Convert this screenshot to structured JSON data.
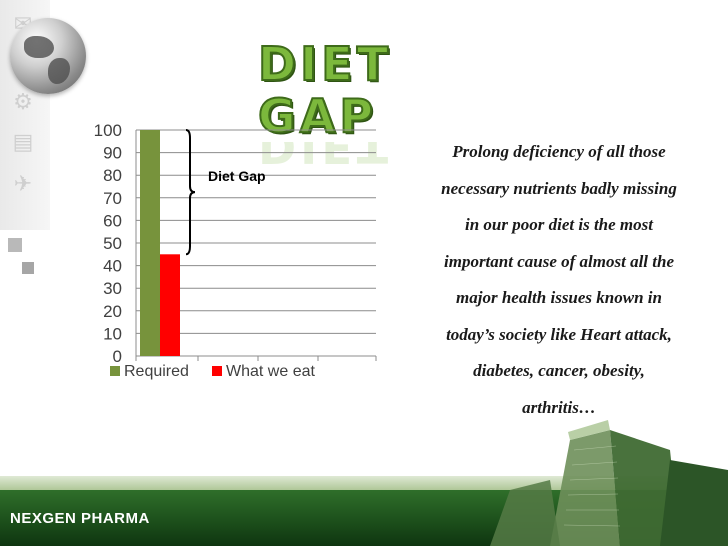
{
  "slide": {
    "title": "DIET GAP",
    "footer": "NEXGEN PHARMA",
    "body_lines": [
      "Prolong deficiency of all those",
      "necessary nutrients badly missing",
      "in our poor diet is the most",
      "important cause of almost all the",
      "major health issues known in",
      "today’s society like Heart attack,",
      "diabetes, cancer, obesity,",
      "arthritis…"
    ]
  },
  "chart_data": {
    "type": "bar",
    "categories": [
      ""
    ],
    "series": [
      {
        "name": "Required",
        "values": [
          100
        ],
        "color": "#77933c"
      },
      {
        "name": "What we eat",
        "values": [
          45
        ],
        "color": "#ff0000"
      }
    ],
    "ylim": [
      0,
      100
    ],
    "yticks": [
      0,
      10,
      20,
      30,
      40,
      50,
      60,
      70,
      80,
      90,
      100
    ],
    "legend_position": "bottom",
    "annotation": "Diet Gap",
    "grid": true
  },
  "colors": {
    "accent": "#7cb83c",
    "footer": "#1b4d1a"
  },
  "icons": [
    "globe-icon",
    "envelope-icon",
    "gear-icon",
    "document-icon",
    "satellite-icon"
  ]
}
